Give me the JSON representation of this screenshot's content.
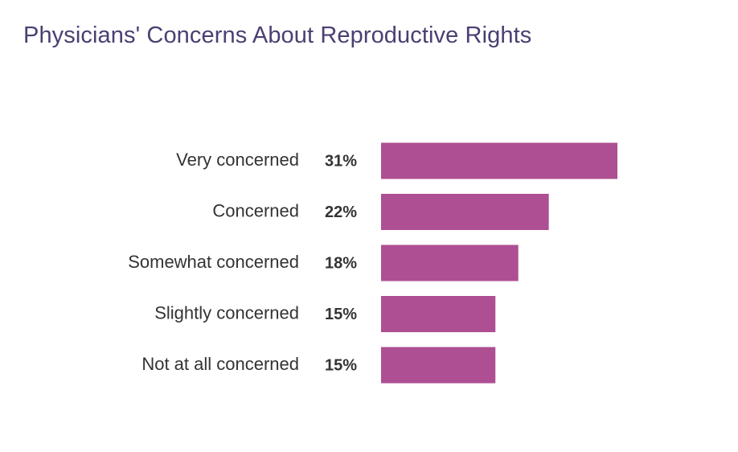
{
  "chart_data": {
    "type": "bar",
    "orientation": "horizontal",
    "title": "Physicians' Concerns About Reproductive Rights",
    "categories": [
      "Very concerned",
      "Concerned",
      "Somewhat concerned",
      "Slightly concerned",
      "Not at all concerned"
    ],
    "values": [
      31,
      22,
      18,
      15,
      15
    ],
    "value_labels": [
      "31%",
      "22%",
      "18%",
      "15%",
      "15%"
    ],
    "unit": "%",
    "xlabel": "",
    "ylabel": "",
    "xlim": [
      0,
      31
    ],
    "grid": false,
    "legend": "none",
    "bar_color": "#ad4f92"
  }
}
